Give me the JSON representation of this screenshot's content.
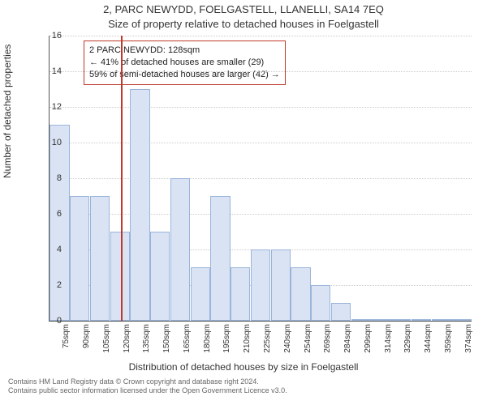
{
  "title_line1": "2, PARC NEWYDD, FOELGASTELL, LLANELLI, SA14 7EQ",
  "title_line2": "Size of property relative to detached houses in Foelgastell",
  "ylabel": "Number of detached properties",
  "xlabel": "Distribution of detached houses by size in Foelgastell",
  "footer_line1": "Contains HM Land Registry data © Crown copyright and database right 2024.",
  "footer_line2": "Contains public sector information licensed under the Open Government Licence v3.0.",
  "chart": {
    "type": "bar",
    "ylim": [
      0,
      16
    ],
    "ytick_step": 2,
    "categories": [
      "75sqm",
      "90sqm",
      "105sqm",
      "120sqm",
      "135sqm",
      "150sqm",
      "165sqm",
      "180sqm",
      "195sqm",
      "210sqm",
      "225sqm",
      "240sqm",
      "254sqm",
      "269sqm",
      "284sqm",
      "299sqm",
      "314sqm",
      "329sqm",
      "344sqm",
      "359sqm",
      "374sqm"
    ],
    "values": [
      11,
      7,
      7,
      5,
      13,
      5,
      8,
      3,
      7,
      3,
      4,
      4,
      3,
      2,
      1,
      0,
      0,
      0,
      0,
      0,
      0
    ],
    "bar_color": "#d9e3f3",
    "bar_border_color": "#9bb5da",
    "background_color": "#ffffff",
    "grid_color": "#cccccc",
    "marker_value": 128,
    "marker_color": "#c0392b",
    "bar_width": 0.98
  },
  "callout": {
    "line1": "2 PARC NEWYDD: 128sqm",
    "line2": "← 41% of detached houses are smaller (29)",
    "line3": "59% of semi-detached houses are larger (42) →",
    "border_color": "#c0392b"
  }
}
